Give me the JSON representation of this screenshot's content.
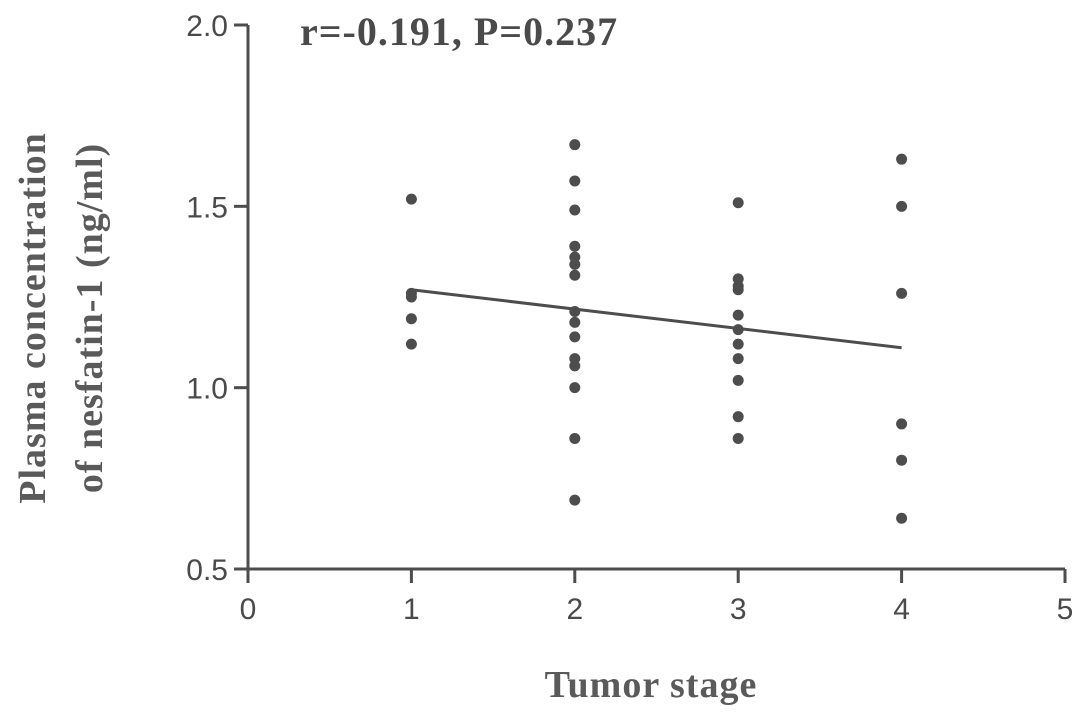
{
  "chart_data": {
    "type": "scatter",
    "title": "",
    "xlabel": "Tumor stage",
    "ylabel_lines": [
      "Plasma concentration",
      "of nesfatin-1 (ng/ml)"
    ],
    "annotation": "r=-0.191, P=0.237",
    "xlim": [
      0,
      5
    ],
    "ylim": [
      0.5,
      2.0
    ],
    "xticks": [
      0,
      1,
      2,
      3,
      4,
      5
    ],
    "xtick_labels": [
      "0",
      "1",
      "2",
      "3",
      "4",
      "5"
    ],
    "yticks": [
      0.5,
      1.0,
      1.5,
      2.0
    ],
    "ytick_labels": [
      "0.5",
      "1.0",
      "1.5",
      "2.0"
    ],
    "grid": false,
    "colors": {
      "axis": "#4d4d4d",
      "points": "#4d4d4d",
      "fit_line": "#4d4d4d"
    },
    "series": [
      {
        "points": [
          {
            "x": 1,
            "y": 1.52
          },
          {
            "x": 1,
            "y": 1.26
          },
          {
            "x": 1,
            "y": 1.25
          },
          {
            "x": 1,
            "y": 1.19
          },
          {
            "x": 1,
            "y": 1.12
          },
          {
            "x": 2,
            "y": 1.67
          },
          {
            "x": 2,
            "y": 1.57
          },
          {
            "x": 2,
            "y": 1.49
          },
          {
            "x": 2,
            "y": 1.39
          },
          {
            "x": 2,
            "y": 1.36
          },
          {
            "x": 2,
            "y": 1.34
          },
          {
            "x": 2,
            "y": 1.31
          },
          {
            "x": 2,
            "y": 1.21
          },
          {
            "x": 2,
            "y": 1.18
          },
          {
            "x": 2,
            "y": 1.14
          },
          {
            "x": 2,
            "y": 1.08
          },
          {
            "x": 2,
            "y": 1.06
          },
          {
            "x": 2,
            "y": 1.0
          },
          {
            "x": 2,
            "y": 0.86
          },
          {
            "x": 2,
            "y": 0.69
          },
          {
            "x": 3,
            "y": 1.51
          },
          {
            "x": 3,
            "y": 1.3
          },
          {
            "x": 3,
            "y": 1.28
          },
          {
            "x": 3,
            "y": 1.27
          },
          {
            "x": 3,
            "y": 1.2
          },
          {
            "x": 3,
            "y": 1.16
          },
          {
            "x": 3,
            "y": 1.12
          },
          {
            "x": 3,
            "y": 1.08
          },
          {
            "x": 3,
            "y": 1.02
          },
          {
            "x": 3,
            "y": 0.92
          },
          {
            "x": 3,
            "y": 0.86
          },
          {
            "x": 4,
            "y": 1.63
          },
          {
            "x": 4,
            "y": 1.5
          },
          {
            "x": 4,
            "y": 1.26
          },
          {
            "x": 4,
            "y": 0.9
          },
          {
            "x": 4,
            "y": 0.8
          },
          {
            "x": 4,
            "y": 0.64
          }
        ]
      }
    ],
    "fit_line": {
      "x": [
        1,
        4
      ],
      "y": [
        1.27,
        1.11
      ]
    }
  }
}
